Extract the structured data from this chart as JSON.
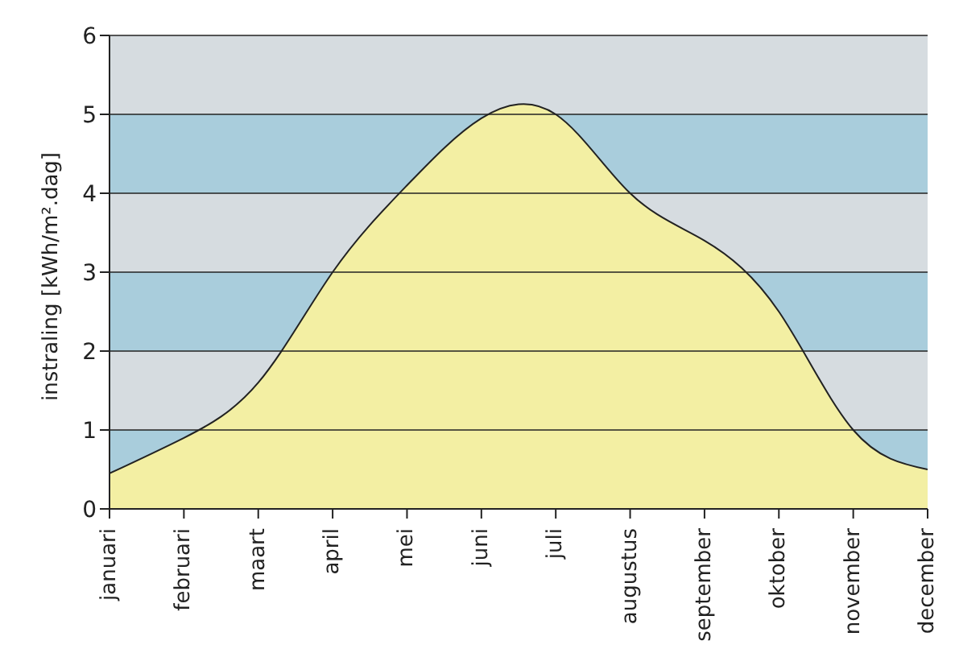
{
  "chart_data": {
    "type": "area",
    "ylabel": "instraling [kWh/m².dag]",
    "categories": [
      "januari",
      "februari",
      "maart",
      "april",
      "mei",
      "juni",
      "juli",
      "augustus",
      "september",
      "oktober",
      "november",
      "december"
    ],
    "series": [
      {
        "color": "#f3efa3",
        "values": [
          0.45,
          0.9,
          1.6,
          3.0,
          4.1,
          4.95,
          5.0,
          4.0,
          3.4,
          2.5,
          1.0,
          0.5
        ]
      }
    ],
    "ylim": [
      0,
      6
    ],
    "yticks": [
      0,
      1,
      2,
      3,
      4,
      5,
      6
    ],
    "grid": "y",
    "bands": [
      {
        "axis": "y",
        "from": 0,
        "to": 1,
        "color": "#a9cddc"
      },
      {
        "axis": "y",
        "from": 1,
        "to": 2,
        "color": "#d6dce0"
      },
      {
        "axis": "y",
        "from": 2,
        "to": 3,
        "color": "#a9cddc"
      },
      {
        "axis": "y",
        "from": 3,
        "to": 4,
        "color": "#d6dce0"
      },
      {
        "axis": "y",
        "from": 4,
        "to": 5,
        "color": "#a9cddc"
      },
      {
        "axis": "y",
        "from": 5,
        "to": 6,
        "color": "#d6dce0"
      }
    ]
  }
}
